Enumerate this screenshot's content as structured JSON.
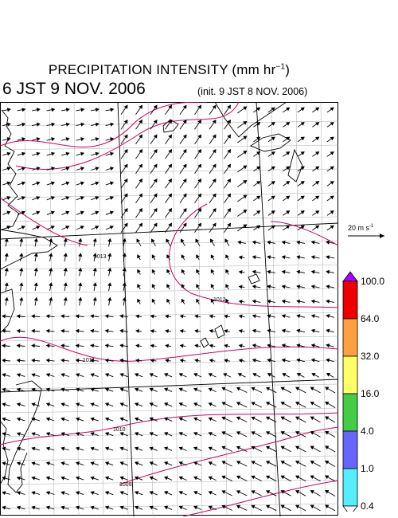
{
  "header": {
    "title": "PRECIPITATION INTENSITY (mm hr",
    "title_exp": "−1",
    "title_close": ")",
    "valid_time": "6 JST 9 NOV. 2006",
    "init_time": "(init. 9 JST 8 NOV. 2006)"
  },
  "reference_vector": {
    "label": "20 m s",
    "exp": "-1"
  },
  "isobars": [
    {
      "label": "1013"
    },
    {
      "label": "1012"
    },
    {
      "label": "1011"
    },
    {
      "label": "1010"
    },
    {
      "label": "1009"
    }
  ],
  "colorbar": {
    "labels": [
      "100.0",
      "64.0",
      "32.0",
      "16.0",
      "4.0",
      "1.0",
      "0.4"
    ],
    "colors": [
      "#aa00ff",
      "#ee0000",
      "#ffa040",
      "#ffff66",
      "#44cc44",
      "#6666ff",
      "#55eeff"
    ],
    "under_color": "#ffffff"
  },
  "colors": {
    "isobar": "#cc0066",
    "coast": "#000000",
    "grid": "#999999"
  }
}
